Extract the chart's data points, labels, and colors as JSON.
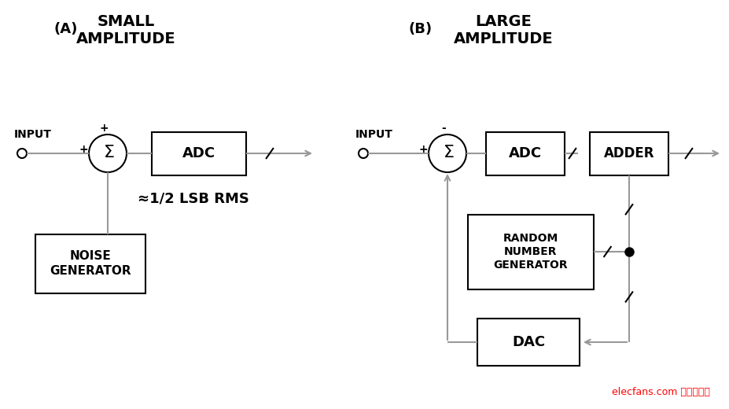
{
  "bg_color": "#ffffff",
  "title_A": "SMALL\nAMPLITUDE",
  "title_B": "LARGE\nAMPLITUDE",
  "label_A": "(A)",
  "label_B": "(B)",
  "watermark": "elecfans.com 电子发烧友",
  "line_color": "#999999",
  "box_color": "#000000",
  "text_color": "#000000",
  "watermark_color": "#ff0000"
}
